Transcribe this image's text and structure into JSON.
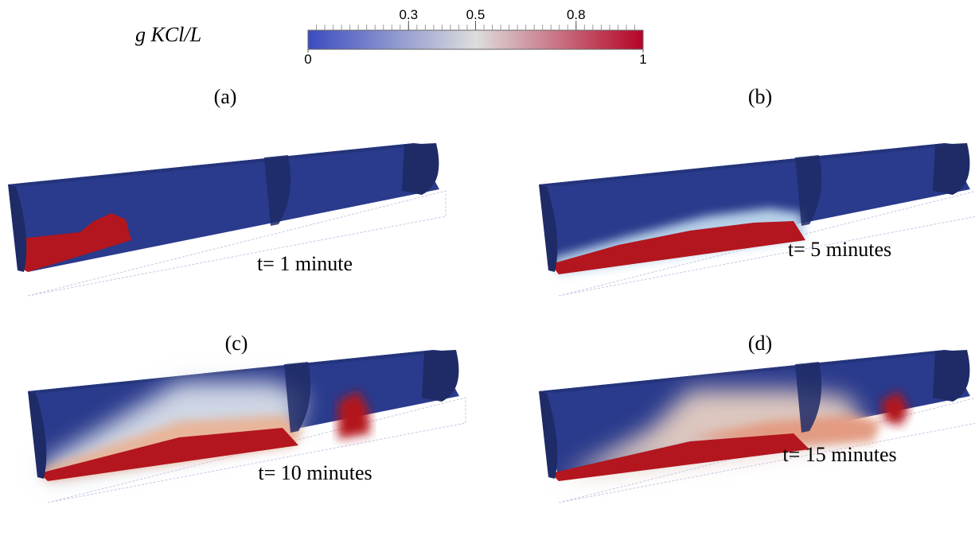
{
  "colorbar": {
    "label": "g KCl/L",
    "range": [
      0,
      1
    ],
    "ticks": [
      0,
      0.3,
      0.5,
      0.8,
      1
    ],
    "colors": [
      "#3b4cc0",
      "#dddddd",
      "#b40426"
    ]
  },
  "panels": [
    {
      "letter": "(a)",
      "caption": "t= 1 minute"
    },
    {
      "letter": "(b)",
      "caption": "t= 5 minutes"
    },
    {
      "letter": "(c)",
      "caption": "t= 10 minutes"
    },
    {
      "letter": "(d)",
      "caption": "t= 15 minutes"
    }
  ]
}
